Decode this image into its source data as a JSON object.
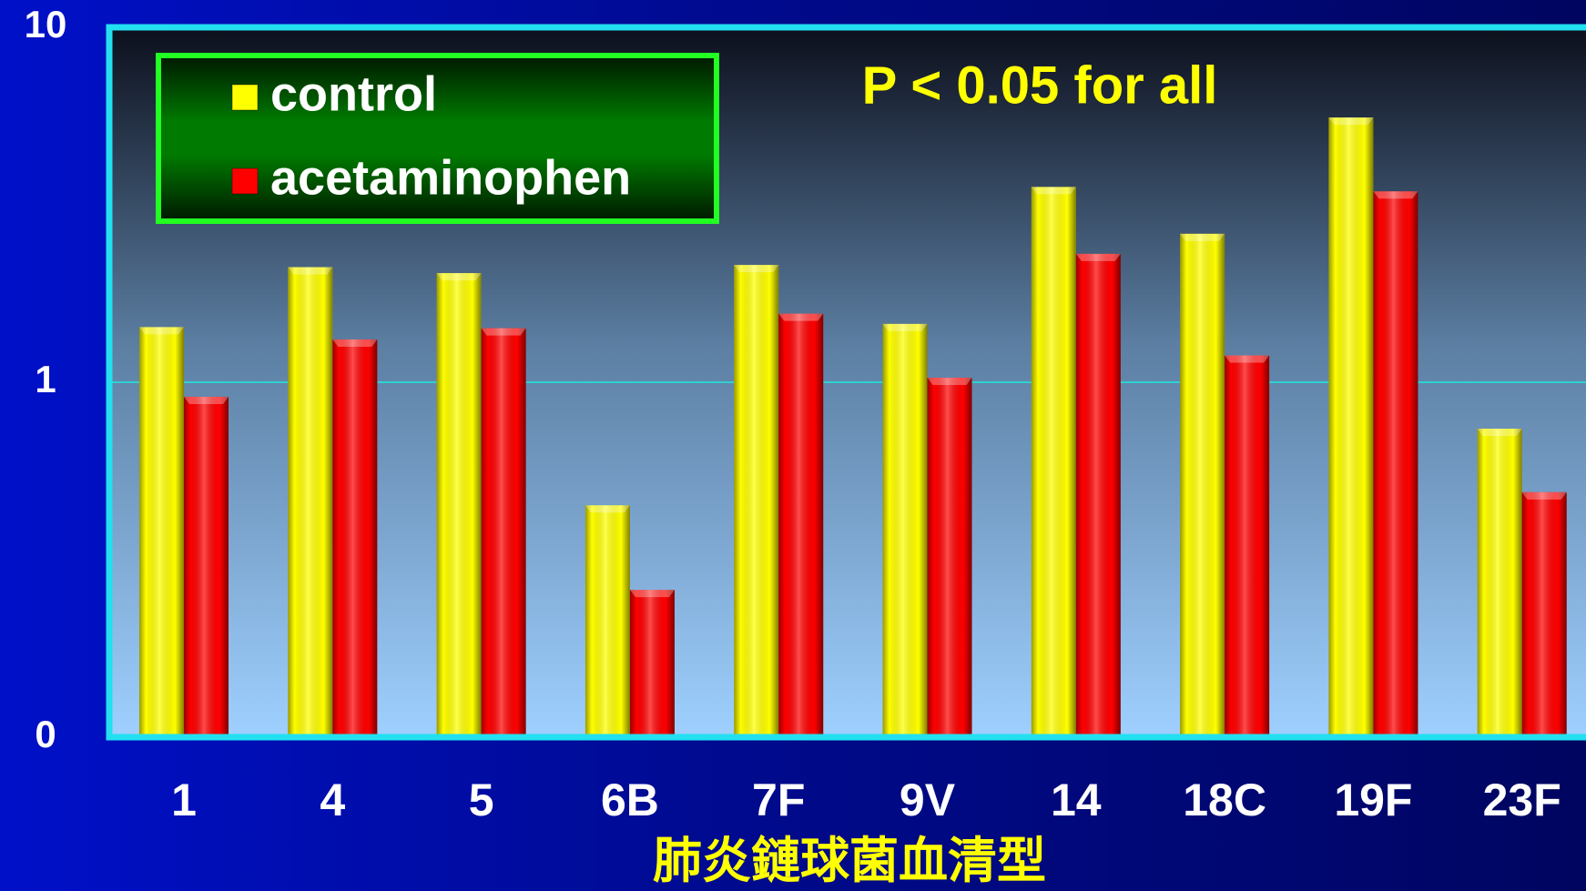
{
  "chart_data": {
    "type": "bar",
    "annotation": "P < 0.05 for all",
    "x_label": "肺炎鏈球菌血清型",
    "categories": [
      "1",
      "4",
      "5",
      "6B",
      "7F",
      "9V",
      "14",
      "18C",
      "19F",
      "23F"
    ],
    "series": [
      {
        "name": "control",
        "color": "#ffff00",
        "values": [
          1.43,
          2.11,
          2.03,
          0.45,
          2.14,
          1.46,
          3.55,
          2.62,
          5.57,
          0.74
        ]
      },
      {
        "name": "acetaminophen",
        "color": "#ff0000",
        "values": [
          0.91,
          1.32,
          1.42,
          0.26,
          1.56,
          1.03,
          2.3,
          1.19,
          3.45,
          0.49
        ]
      }
    ],
    "log_scale": true,
    "ylim": [
      0.1,
      10
    ],
    "yticks": [
      {
        "value": 0.1,
        "label": "0"
      },
      1,
      10
    ],
    "grid": true,
    "legend": "upper left"
  }
}
